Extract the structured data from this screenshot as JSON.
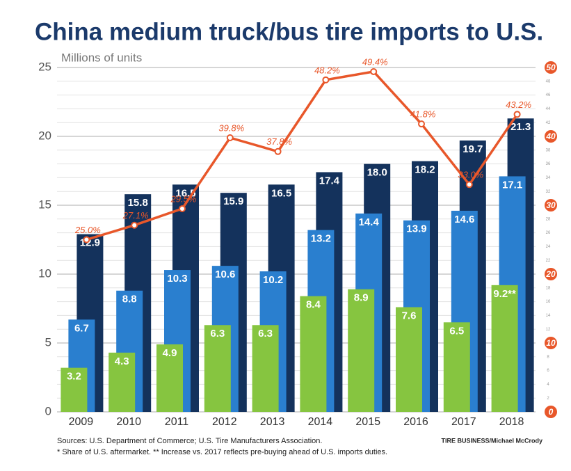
{
  "chart_data": {
    "type": "bar",
    "title": "China medium truck/bus tire imports to U.S.",
    "ylabel": "Millions of units",
    "categories": [
      "2009",
      "2010",
      "2011",
      "2012",
      "2013",
      "2014",
      "2015",
      "2016",
      "2017",
      "2018"
    ],
    "series": [
      {
        "color": "#14325c",
        "values": [
          12.9,
          15.8,
          16.5,
          15.9,
          16.5,
          17.4,
          18.0,
          18.2,
          19.7,
          21.3
        ],
        "value_labels": [
          "12.9",
          "15.8",
          "16.5",
          "15.9",
          "16.5",
          "17.4",
          "18.0",
          "18.2",
          "19.7",
          "21.3"
        ]
      },
      {
        "color": "#2a7fcf",
        "values": [
          6.7,
          8.8,
          10.3,
          10.6,
          10.2,
          13.2,
          14.4,
          13.9,
          14.6,
          17.1
        ],
        "value_labels": [
          "6.7",
          "8.8",
          "10.3",
          "10.6",
          "10.2",
          "13.2",
          "14.4",
          "13.9",
          "14.6",
          "17.1"
        ]
      },
      {
        "color": "#86c540",
        "values": [
          3.2,
          4.3,
          4.9,
          6.3,
          6.3,
          8.4,
          8.9,
          7.6,
          6.5,
          9.2
        ],
        "value_labels": [
          "3.2",
          "4.3",
          "4.9",
          "6.3",
          "6.3",
          "8.4",
          "8.9",
          "7.6",
          "6.5",
          "9.2**"
        ]
      },
      {
        "type": "line",
        "axis": "y2",
        "color": "#e8572a",
        "values": [
          25.0,
          27.1,
          29.5,
          39.8,
          37.8,
          48.2,
          49.4,
          41.8,
          33.0,
          43.2
        ],
        "value_labels": [
          "25.0%",
          "27.1%",
          "29.5%",
          "39.8%",
          "37.8%",
          "48.2%",
          "49.4%",
          "41.8%",
          "33.0%",
          "43.2%"
        ]
      }
    ],
    "ylim": [
      0,
      25
    ],
    "yticks": [
      0,
      5,
      10,
      15,
      20,
      25
    ],
    "y2lim": [
      0,
      50
    ],
    "y2ticks": [
      0,
      10,
      20,
      30,
      40,
      50
    ],
    "y2minorticks": [
      2,
      4,
      6,
      8,
      12,
      14,
      16,
      18,
      22,
      24,
      26,
      28,
      32,
      34,
      36,
      38,
      42,
      44,
      46,
      48
    ],
    "grid": true,
    "notes": [
      "Sources: U.S. Department of Commerce; U.S. Tire Manufacturers Association.",
      "* Share of U.S. aftermarket.   ** Increase vs. 2017 reflects pre-buying ahead of U.S. imports duties."
    ],
    "credit": "TIRE BUSINESS/Michael McCrody"
  }
}
